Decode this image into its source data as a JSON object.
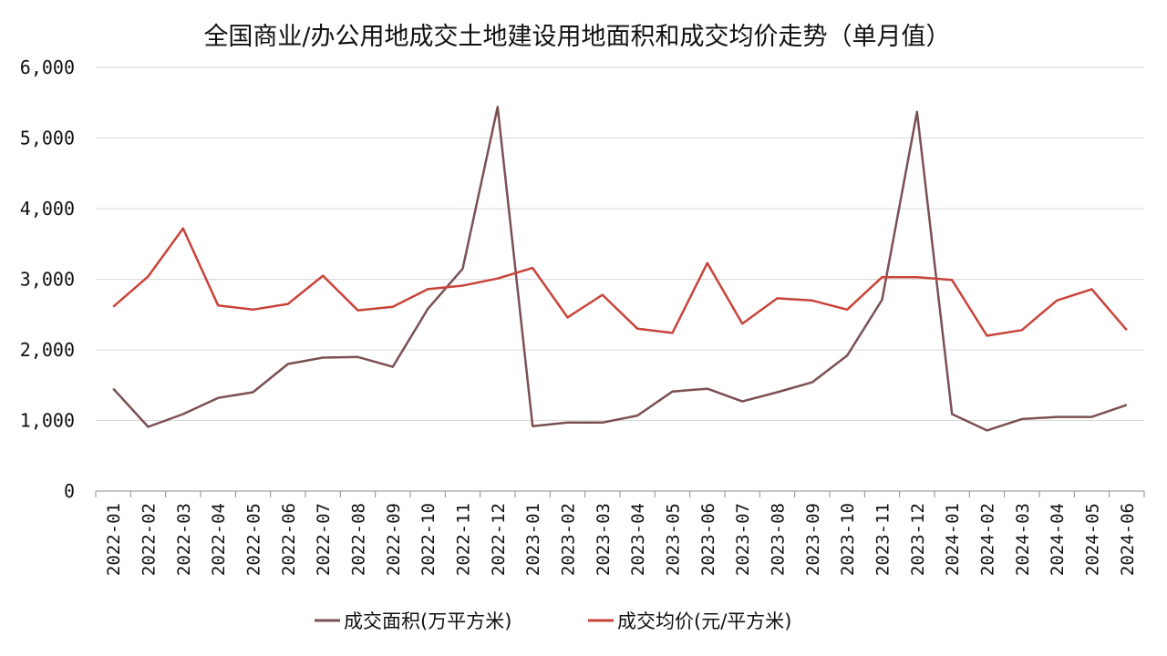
{
  "chart_data": {
    "type": "line",
    "title": "全国商业/办公用地成交土地建设用地面积和成交均价走势（单月值）",
    "xlabel": "",
    "ylabel": "",
    "ylim": [
      0,
      6000
    ],
    "yticks": [
      0,
      1000,
      2000,
      3000,
      4000,
      5000,
      6000
    ],
    "ytick_labels": [
      "0",
      "1,000",
      "2,000",
      "3,000",
      "4,000",
      "5,000",
      "6,000"
    ],
    "grid": true,
    "legend_position": "bottom",
    "categories": [
      "2022-01",
      "2022-02",
      "2022-03",
      "2022-04",
      "2022-05",
      "2022-06",
      "2022-07",
      "2022-08",
      "2022-09",
      "2022-10",
      "2022-11",
      "2022-12",
      "2023-01",
      "2023-02",
      "2023-03",
      "2023-04",
      "2023-05",
      "2023-06",
      "2023-07",
      "2023-08",
      "2023-09",
      "2023-10",
      "2023-11",
      "2023-12",
      "2024-01",
      "2024-02",
      "2024-03",
      "2024-04",
      "2024-05",
      "2024-06"
    ],
    "series": [
      {
        "name": "成交面积(万平方米)",
        "color": "#7b5054",
        "values": [
          1450,
          910,
          1090,
          1320,
          1400,
          1800,
          1890,
          1900,
          1760,
          2580,
          3150,
          5440,
          920,
          970,
          970,
          1070,
          1410,
          1450,
          1270,
          1400,
          1540,
          1920,
          2710,
          5370,
          1090,
          860,
          1020,
          1050,
          1050,
          1220
        ]
      },
      {
        "name": "成交均价(元/平方米)",
        "color": "#c8443a",
        "values": [
          2610,
          3040,
          3720,
          2630,
          2570,
          2650,
          3050,
          2560,
          2610,
          2860,
          2910,
          3010,
          3160,
          2460,
          2780,
          2300,
          2240,
          3230,
          2370,
          2730,
          2700,
          2570,
          3030,
          3030,
          2990,
          2200,
          2280,
          2700,
          2860,
          2280
        ]
      }
    ]
  }
}
